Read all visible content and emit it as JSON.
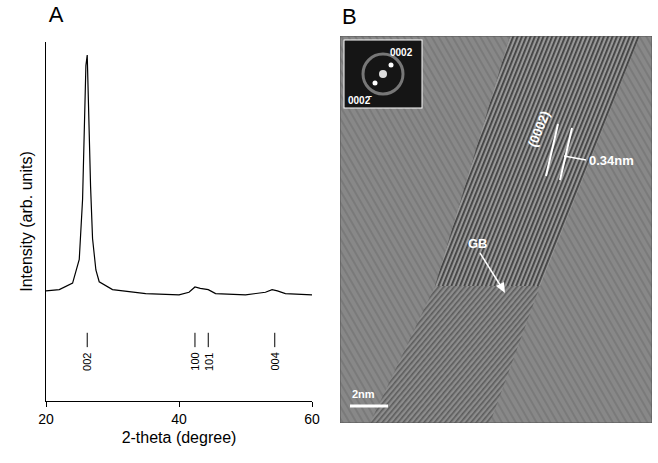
{
  "chart_data": {
    "type": "line",
    "title": "A",
    "x_label": "2-theta (degree)",
    "y_label": "Intensity (arb. units)",
    "x": [
      20,
      22,
      24,
      25,
      25.5,
      25.8,
      26.0,
      26.2,
      26.4,
      26.7,
      27.0,
      27.5,
      28,
      30,
      35,
      40,
      41.5,
      42.4,
      43.2,
      44.4,
      45.5,
      50,
      53,
      54.0,
      54.8,
      56,
      60
    ],
    "values": [
      10,
      10.5,
      13,
      22,
      45,
      80,
      96,
      100,
      78,
      50,
      30,
      18,
      13.5,
      10.5,
      9,
      8.5,
      9.5,
      11.5,
      11,
      10.5,
      9,
      8.5,
      9.5,
      10.5,
      10,
      9,
      8.5
    ],
    "color": "#000000",
    "xlim": [
      20,
      60
    ],
    "xticks": [
      20,
      40,
      60
    ],
    "ylim": [
      -32,
      105
    ],
    "tick_labels": "x",
    "grid": false,
    "annotations": [
      {
        "text": "002",
        "x": 26.2
      },
      {
        "text": "100",
        "x": 42.4
      },
      {
        "text": "101",
        "x": 44.4
      },
      {
        "text": "004",
        "x": 54.4
      }
    ]
  },
  "micrograph": {
    "panel_label": "B",
    "inset_spots": [
      "0002",
      "0002̄"
    ],
    "annotations": [
      "(0002)",
      "0.34nm",
      "GB"
    ],
    "scale_bar": "2nm"
  }
}
